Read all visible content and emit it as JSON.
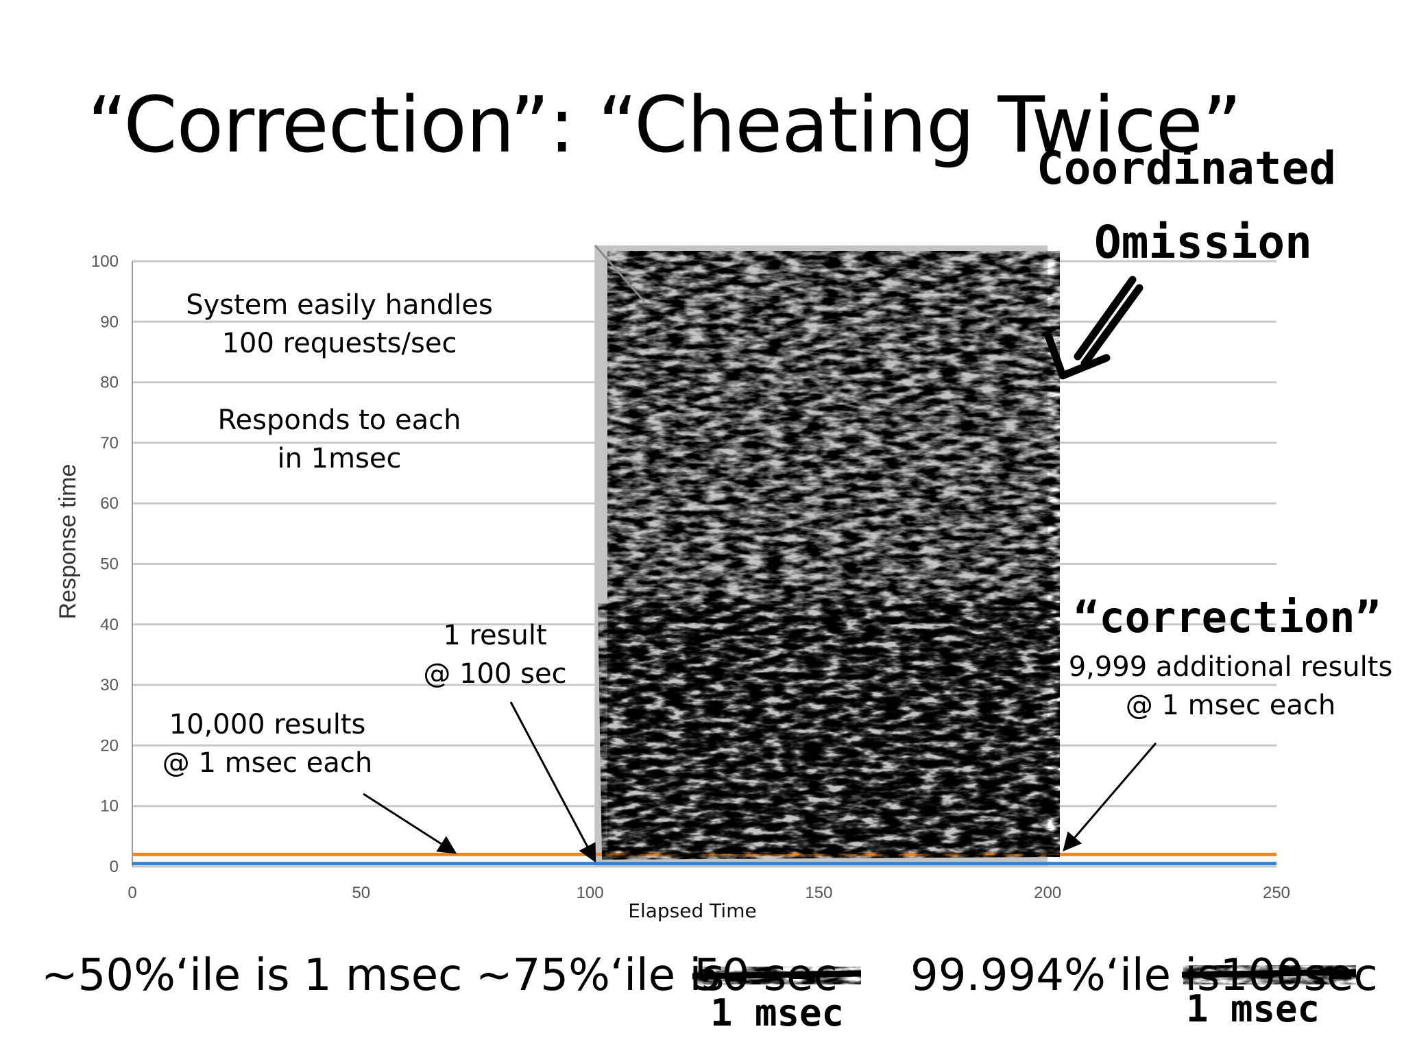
{
  "slide": {
    "title": "“Correction”: “Cheating Twice”"
  },
  "annotations": {
    "system_line1": "System easily handles",
    "system_line2": "100 requests/sec",
    "responds_line1": "Responds to each",
    "responds_line2": "in 1msec",
    "results_line1": "10,000 results",
    "results_line2": "@ 1 msec each",
    "one_result_line1": "1 result",
    "one_result_line2": "@ 100 sec",
    "additional_line1": "9,999 additional results",
    "additional_line2": "@ 1 msec each"
  },
  "handwritten": {
    "coordinated_line1": "Coordinated",
    "coordinated_line2": "Omission",
    "correction": "“correction”",
    "msec_1": "1 msec",
    "msec_2": "1 msec"
  },
  "percentiles": {
    "p50": "~50%‘ile is 1 msec",
    "p75_prefix": "~75%‘ile is",
    "p75_struck": "50 sec",
    "p99_prefix": "99.994%‘ile is",
    "p99_struck": "~100sec"
  },
  "colors": {
    "series_orange": "#f0861f",
    "series_blue": "#2e86de",
    "grid": "#c8c8c8",
    "shaded_region": "#c4c4c4",
    "scribble": "#000000"
  },
  "chart_data": {
    "type": "line",
    "title": "",
    "xlabel": "Elapsed Time",
    "ylabel": "Response time",
    "xlim": [
      0,
      250
    ],
    "ylim": [
      0,
      100
    ],
    "x_ticks": [
      0,
      50,
      100,
      150,
      200,
      250
    ],
    "y_ticks": [
      0,
      10,
      20,
      30,
      40,
      50,
      60,
      70,
      80,
      90,
      100
    ],
    "grid": true,
    "legend": "none",
    "shaded_region_x": [
      101,
      200
    ],
    "series": [
      {
        "color": "#f0861f",
        "x": [
          0,
          100,
          200,
          250
        ],
        "y": [
          2,
          2,
          2,
          2
        ]
      },
      {
        "color": "#2e86de",
        "x": [
          0,
          100,
          200,
          250
        ],
        "y": [
          0.5,
          0.5,
          0.5,
          0.5
        ]
      }
    ]
  }
}
